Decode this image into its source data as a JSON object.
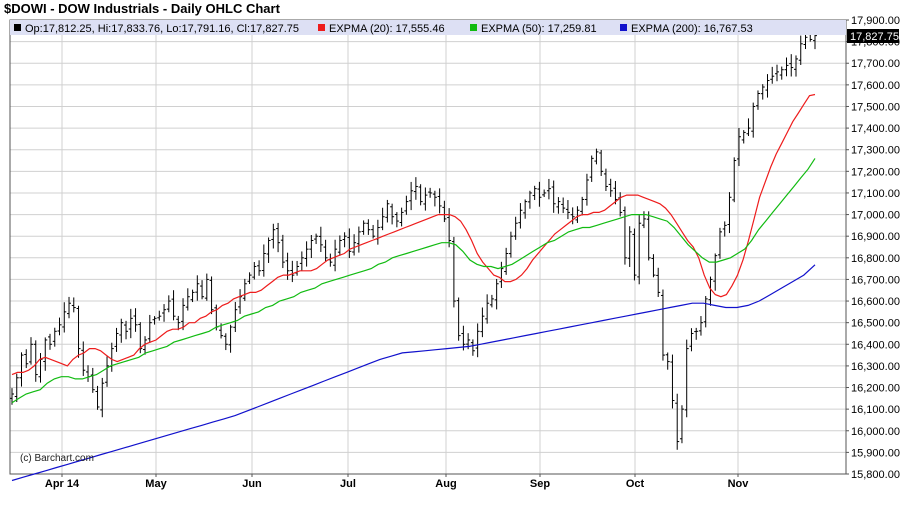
{
  "title": "$DOWI - DOW Industrials - Daily OHLC Chart",
  "watermark": "(c) Barchart.com",
  "legend": {
    "ohlc": "Op:17,812.25, Hi:17,833.76, Lo:17,791.16, Cl:17,827.75",
    "ema20": "EXPMA (20): 17,555.46",
    "ema50": "EXPMA (50): 17,259.81",
    "ema200": "EXPMA (200): 16,767.53"
  },
  "last_price_label": "17,827.75",
  "colors": {
    "price": "#000000",
    "ema20": "#ee1c1c",
    "ema50": "#11bb11",
    "ema200": "#1111cc",
    "grid": "#d0d0d0",
    "legend_bg": "#dde0f4"
  },
  "chart_data": {
    "type": "line",
    "title": "$DOWI - DOW Industrials - Daily OHLC Chart",
    "ylim": [
      15800,
      17900
    ],
    "y_ticks": [
      "15,800.00",
      "15,900.00",
      "16,000.00",
      "16,100.00",
      "16,200.00",
      "16,300.00",
      "16,400.00",
      "16,500.00",
      "16,600.00",
      "16,700.00",
      "16,800.00",
      "16,900.00",
      "17,000.00",
      "17,100.00",
      "17,200.00",
      "17,300.00",
      "17,400.00",
      "17,500.00",
      "17,600.00",
      "17,700.00",
      "17,800.00",
      "17,900.00"
    ],
    "month_labels": [
      "Apr 14",
      "May",
      "Jun",
      "Jul",
      "Aug",
      "Sep",
      "Oct",
      "Nov"
    ],
    "grid": true,
    "legend_position": "top",
    "series": [
      {
        "name": "$DOWI",
        "type": "ohlc",
        "close": [
          16170,
          16245,
          16350,
          16310,
          16400,
          16260,
          16330,
          16420,
          16400,
          16460,
          16490,
          16550,
          16590,
          16570,
          16380,
          16280,
          16250,
          16190,
          16110,
          16220,
          16300,
          16380,
          16450,
          16500,
          16460,
          16520,
          16490,
          16380,
          16420,
          16500,
          16520,
          16530,
          16560,
          16600,
          16530,
          16500,
          16580,
          16620,
          16640,
          16680,
          16620,
          16700,
          16560,
          16480,
          16440,
          16400,
          16480,
          16560,
          16620,
          16680,
          16720,
          16760,
          16740,
          16820,
          16880,
          16930,
          16870,
          16780,
          16740,
          16720,
          16760,
          16800,
          16840,
          16880,
          16900,
          16860,
          16800,
          16780,
          16840,
          16880,
          16900,
          16830,
          16870,
          16920,
          16960,
          16930,
          16900,
          16940,
          16990,
          17050,
          16990,
          16970,
          17010,
          17060,
          17110,
          17130,
          17060,
          17090,
          17100,
          17080,
          17040,
          16980,
          16880,
          16600,
          16440,
          16400,
          16420,
          16370,
          16460,
          16530,
          16590,
          16610,
          16680,
          16750,
          16820,
          16900,
          16960,
          17020,
          17060,
          17100,
          17120,
          17080,
          17100,
          17120,
          17050,
          17060,
          17030,
          17010,
          16990,
          17020,
          17070,
          17160,
          17260,
          17290,
          17200,
          17130,
          17110,
          17070,
          17010,
          16800,
          16920,
          16720,
          16960,
          16980,
          16800,
          16720,
          16640,
          16350,
          16320,
          16140,
          15950,
          16100,
          16380,
          16450,
          16460,
          16500,
          16610,
          16700,
          16810,
          16920,
          16950,
          17080,
          17250,
          17360,
          17380,
          17400,
          17500,
          17560,
          17590,
          17620,
          17640,
          17660,
          17670,
          17690,
          17680,
          17720,
          17790,
          17820,
          17810,
          17827.75
        ]
      },
      {
        "name": "EXPMA (20)",
        "values": [
          16260,
          16270,
          16270,
          16280,
          16300,
          16330,
          16340,
          16330,
          16320,
          16310,
          16300,
          16330,
          16350,
          16360,
          16380,
          16380,
          16370,
          16350,
          16330,
          16320,
          16330,
          16340,
          16350,
          16380,
          16400,
          16410,
          16420,
          16440,
          16460,
          16470,
          16470,
          16480,
          16500,
          16500,
          16520,
          16530,
          16550,
          16560,
          16580,
          16590,
          16610,
          16620,
          16630,
          16640,
          16640,
          16650,
          16670,
          16690,
          16710,
          16720,
          16720,
          16730,
          16740,
          16740,
          16740,
          16750,
          16770,
          16790,
          16800,
          16810,
          16820,
          16840,
          16850,
          16860,
          16870,
          16880,
          16890,
          16900,
          16910,
          16920,
          16930,
          16940,
          16950,
          16960,
          16970,
          16980,
          16990,
          17000,
          17000,
          17000,
          16990,
          16970,
          16930,
          16880,
          16820,
          16780,
          16750,
          16720,
          16710,
          16690,
          16690,
          16700,
          16720,
          16750,
          16790,
          16820,
          16850,
          16880,
          16910,
          16930,
          16950,
          16970,
          16990,
          17000,
          17000,
          17010,
          17010,
          17020,
          17040,
          17060,
          17080,
          17090,
          17090,
          17090,
          17080,
          17070,
          17060,
          17050,
          17030,
          17000,
          16960,
          16920,
          16880,
          16850,
          16800,
          16720,
          16660,
          16630,
          16620,
          16630,
          16670,
          16720,
          16790,
          16880,
          16980,
          17080,
          17150,
          17220,
          17280,
          17330,
          17380,
          17430,
          17470,
          17510,
          17550,
          17555.46
        ]
      },
      {
        "name": "EXPMA (50)",
        "values": [
          16130,
          16150,
          16170,
          16180,
          16190,
          16220,
          16240,
          16250,
          16250,
          16240,
          16240,
          16250,
          16260,
          16280,
          16300,
          16310,
          16320,
          16330,
          16340,
          16360,
          16370,
          16380,
          16390,
          16410,
          16420,
          16430,
          16440,
          16450,
          16460,
          16480,
          16490,
          16500,
          16510,
          16530,
          16540,
          16550,
          16570,
          16580,
          16600,
          16610,
          16620,
          16640,
          16650,
          16660,
          16680,
          16690,
          16700,
          16710,
          16720,
          16730,
          16740,
          16750,
          16770,
          16780,
          16800,
          16810,
          16820,
          16830,
          16840,
          16850,
          16860,
          16870,
          16870,
          16860,
          16830,
          16790,
          16770,
          16760,
          16760,
          16750,
          16760,
          16770,
          16790,
          16810,
          16830,
          16850,
          16870,
          16880,
          16900,
          16920,
          16930,
          16940,
          16940,
          16950,
          16960,
          16970,
          16980,
          16990,
          17000,
          17000,
          17000,
          16990,
          16980,
          16970,
          16940,
          16900,
          16860,
          16830,
          16800,
          16780,
          16780,
          16790,
          16800,
          16820,
          16840,
          16880,
          16930,
          16970,
          17010,
          17050,
          17090,
          17130,
          17170,
          17210,
          17259.81
        ]
      },
      {
        "name": "EXPMA (200)",
        "values": [
          15770,
          15785,
          15800,
          15815,
          15830,
          15845,
          15860,
          15875,
          15890,
          15905,
          15920,
          15935,
          15950,
          15965,
          15980,
          15995,
          16010,
          16025,
          16040,
          16055,
          16070,
          16090,
          16110,
          16130,
          16150,
          16170,
          16190,
          16210,
          16230,
          16250,
          16270,
          16290,
          16310,
          16330,
          16345,
          16360,
          16365,
          16370,
          16375,
          16380,
          16385,
          16390,
          16400,
          16410,
          16420,
          16430,
          16440,
          16450,
          16460,
          16470,
          16480,
          16490,
          16500,
          16510,
          16520,
          16530,
          16540,
          16550,
          16560,
          16570,
          16580,
          16590,
          16590,
          16580,
          16570,
          16570,
          16580,
          16600,
          16630,
          16660,
          16690,
          16720,
          16767.53
        ]
      }
    ]
  }
}
